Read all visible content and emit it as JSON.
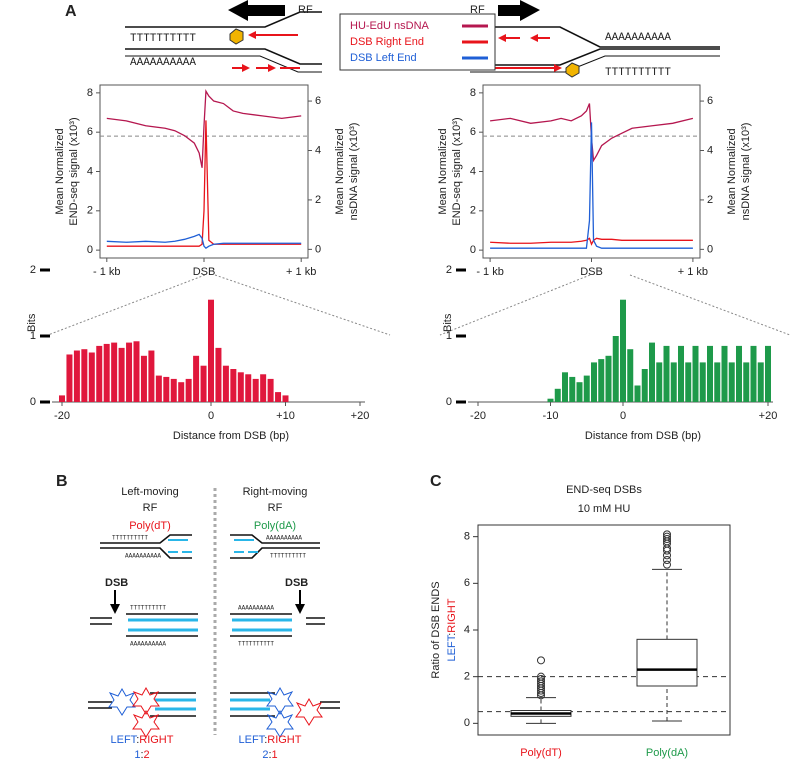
{
  "panel_labels": [
    "A",
    "B",
    "C"
  ],
  "diagram_a": {
    "left": {
      "rf": "RF",
      "top": "TTTTTTTTTT",
      "bottom": "AAAAAAAAAA"
    },
    "right": {
      "rf": "RF",
      "top": "AAAAAAAAAA",
      "bottom": "TTTTTTTTTT"
    }
  },
  "panel_b": {
    "left": {
      "heading": "Left-moving",
      "rf": "RF",
      "poly": "Poly(dT)",
      "dsb": "DSB",
      "strand_t": "TTTTTTTTTT",
      "strand_a": "AAAAAAAAAA",
      "ratio": [
        "LEFT",
        ":",
        "RIGHT"
      ],
      "ratio_value": [
        "1",
        ":",
        "2"
      ]
    },
    "right": {
      "heading": "Right-moving",
      "rf": "RF",
      "poly": "Poly(dA)",
      "dsb": "DSB",
      "strand_t": "TTTTTTTTTT",
      "strand_a": "AAAAAAAAAA",
      "ratio": [
        "LEFT",
        ":",
        "RIGHT"
      ],
      "ratio_value": [
        "2",
        ":",
        "1"
      ]
    }
  },
  "chart_data": [
    {
      "type": "line",
      "x": [
        -1000,
        -800,
        -600,
        -400,
        -300,
        -200,
        -100,
        -50,
        -20,
        0,
        20,
        50,
        100,
        200,
        300,
        400,
        600,
        800,
        1000
      ],
      "xlim": [
        -1070,
        1070
      ],
      "xticks": [
        {
          "value": -1000,
          "label": "- 1 kb"
        },
        {
          "value": 0,
          "label": "DSB"
        },
        {
          "value": 1000,
          "label": "+ 1 kb"
        }
      ],
      "ylim": [
        -0.4,
        8.4
      ],
      "yticks": [
        0,
        2,
        4,
        6,
        8
      ],
      "y2lim": [
        -0.35,
        6.65
      ],
      "y2ticks": [
        0,
        2,
        4,
        6
      ],
      "ylabel": [
        "Mean Normalized",
        "END-seq signal (x10³)"
      ],
      "y2label": [
        "Mean Normalized",
        "nsDNA signal (x10³)"
      ],
      "reference_line": 5.8,
      "series": [
        {
          "name": "HU-EdU nsDNA",
          "color": "#b5174f",
          "axis": "y2",
          "values": [
            5.3,
            5.2,
            5.0,
            4.9,
            4.8,
            4.6,
            4.3,
            3.9,
            3.3,
            5.0,
            6.4,
            6.2,
            6.0,
            5.9,
            5.6,
            5.5,
            5.4,
            5.3,
            5.4
          ]
        },
        {
          "name": "DSB Right End",
          "color": "#e8141b",
          "values": [
            0.2,
            0.2,
            0.2,
            0.2,
            0.2,
            0.2,
            0.2,
            0.2,
            0.3,
            2.0,
            6.6,
            0.5,
            0.3,
            0.3,
            0.3,
            0.3,
            0.3,
            0.3,
            0.3
          ]
        },
        {
          "name": "DSB Left End",
          "color": "#1f5fd6",
          "values": [
            0.45,
            0.4,
            0.45,
            0.4,
            0.45,
            0.55,
            0.7,
            0.8,
            0.6,
            0.2,
            0.1,
            0.2,
            0.3,
            0.35,
            0.35,
            0.35,
            0.35,
            0.35,
            0.35
          ]
        }
      ]
    },
    {
      "type": "line",
      "x": [
        -1000,
        -800,
        -600,
        -400,
        -300,
        -200,
        -100,
        -50,
        -20,
        0,
        20,
        50,
        100,
        200,
        300,
        400,
        600,
        800,
        1000
      ],
      "xlim": [
        -1070,
        1070
      ],
      "xticks": [
        {
          "value": -1000,
          "label": "- 1 kb"
        },
        {
          "value": 0,
          "label": "DSB"
        },
        {
          "value": 1000,
          "label": "+ 1 kb"
        }
      ],
      "ylim": [
        -0.4,
        8.4
      ],
      "yticks": [
        0,
        2,
        4,
        6,
        8
      ],
      "y2lim": [
        -0.35,
        6.65
      ],
      "y2ticks": [
        0,
        2,
        4,
        6
      ],
      "ylabel": [
        "Mean Normalized",
        "END-seq signal (x10³)"
      ],
      "y2label": [
        "Mean Normalized",
        "nsDNA signal (x10³)"
      ],
      "reference_line": 5.8,
      "series": [
        {
          "name": "HU-EdU nsDNA",
          "color": "#b5174f",
          "axis": "y2",
          "values": [
            5.2,
            5.3,
            5.1,
            5.2,
            5.3,
            5.2,
            5.4,
            5.6,
            5.9,
            4.5,
            3.6,
            3.8,
            4.2,
            4.5,
            4.7,
            4.9,
            5.0,
            5.1,
            5.3
          ]
        },
        {
          "name": "DSB Right End",
          "color": "#e8141b",
          "values": [
            0.4,
            0.35,
            0.35,
            0.4,
            0.4,
            0.4,
            0.45,
            0.5,
            0.6,
            0.3,
            0.5,
            0.6,
            0.55,
            0.55,
            0.5,
            0.5,
            0.5,
            0.5,
            0.5
          ]
        },
        {
          "name": "DSB Left End",
          "color": "#1f5fd6",
          "values": [
            0.1,
            0.1,
            0.1,
            0.1,
            0.1,
            0.1,
            0.1,
            0.1,
            1.5,
            6.5,
            0.5,
            0.2,
            0.1,
            0.1,
            0.1,
            0.1,
            0.1,
            0.1,
            0.1
          ]
        }
      ]
    },
    {
      "type": "bar",
      "x": [
        -20,
        -19,
        -18,
        -17,
        -16,
        -15,
        -14,
        -13,
        -12,
        -11,
        -10,
        -9,
        -8,
        -7,
        -6,
        -5,
        -4,
        -3,
        -2,
        -1,
        0,
        1,
        2,
        3,
        4,
        5,
        6,
        7,
        8,
        9,
        10
      ],
      "values": [
        0.1,
        0.72,
        0.78,
        0.8,
        0.75,
        0.85,
        0.88,
        0.9,
        0.82,
        0.9,
        0.92,
        0.7,
        0.78,
        0.4,
        0.38,
        0.35,
        0.3,
        0.35,
        0.7,
        0.55,
        1.55,
        0.82,
        0.55,
        0.5,
        0.45,
        0.42,
        0.35,
        0.42,
        0.35,
        0.15,
        0.1
      ],
      "color": "#e0173c",
      "xlim": [
        -20,
        20
      ],
      "xticks": [
        {
          "value": -20,
          "label": "-20"
        },
        0,
        {
          "value": 10,
          "label": "+10"
        },
        {
          "value": 20,
          "label": "+20"
        }
      ],
      "ylim": [
        0,
        2
      ],
      "yticks": [
        0,
        1,
        2
      ],
      "ylabel": "Bits",
      "xlabel": "Distance from DSB (bp)"
    },
    {
      "type": "bar",
      "x": [
        -10,
        -9,
        -8,
        -7,
        -6,
        -5,
        -4,
        -3,
        -2,
        -1,
        0,
        1,
        2,
        3,
        4,
        5,
        6,
        7,
        8,
        9,
        10,
        11,
        12,
        13,
        14,
        15,
        16,
        17,
        18,
        19,
        20
      ],
      "values": [
        0.05,
        0.2,
        0.45,
        0.38,
        0.3,
        0.4,
        0.6,
        0.65,
        0.7,
        1.0,
        1.55,
        0.8,
        0.25,
        0.5,
        0.9,
        0.6,
        0.85,
        0.6,
        0.85,
        0.6,
        0.85,
        0.6,
        0.85,
        0.6,
        0.85,
        0.6,
        0.85,
        0.6,
        0.85,
        0.6,
        0.85
      ],
      "color": "#1e9a4a",
      "xlim": [
        -20,
        20
      ],
      "xticks": [
        {
          "value": -20,
          "label": "-20"
        },
        {
          "value": -10,
          "label": "-10"
        },
        0,
        {
          "value": 20,
          "label": "+20"
        }
      ],
      "ylim": [
        0,
        2
      ],
      "yticks": [
        0,
        1,
        2
      ],
      "ylabel": "Bits",
      "xlabel": "Distance from DSB (bp)"
    },
    {
      "type": "box",
      "title": "END-seq DSBs",
      "subtitle": "10 mM HU",
      "categories": [
        "Poly(dT)",
        "Poly(dA)"
      ],
      "category_colors": [
        "#e8141b",
        "#1e9a4a"
      ],
      "ylabel": [
        "Ratio of DSB ENDS"
      ],
      "ylabel_colored": [
        {
          "text": "LEFT",
          "color": "#1f5fd6"
        },
        {
          "text": ":",
          "color": "#222222"
        },
        {
          "text": "RIGHT",
          "color": "#e8141b"
        }
      ],
      "ylim": [
        -0.5,
        8.5
      ],
      "yticks": [
        0,
        2,
        4,
        6,
        8
      ],
      "reference_lines": [
        2,
        0.5
      ],
      "boxes": [
        {
          "whisker_low": 0,
          "q1": 0.3,
          "median": 0.42,
          "q3": 0.55,
          "whisker_high": 1.1,
          "outliers": [
            1.2,
            1.3,
            1.4,
            1.5,
            1.6,
            1.7,
            1.8,
            1.9,
            2.0,
            2.7
          ]
        },
        {
          "whisker_low": 0.1,
          "q1": 1.6,
          "median": 2.3,
          "q3": 3.6,
          "whisker_high": 6.6,
          "outliers": [
            6.8,
            7.0,
            7.2,
            7.4,
            7.5,
            7.7,
            7.8,
            7.9,
            8.0,
            8.1
          ]
        }
      ]
    }
  ]
}
